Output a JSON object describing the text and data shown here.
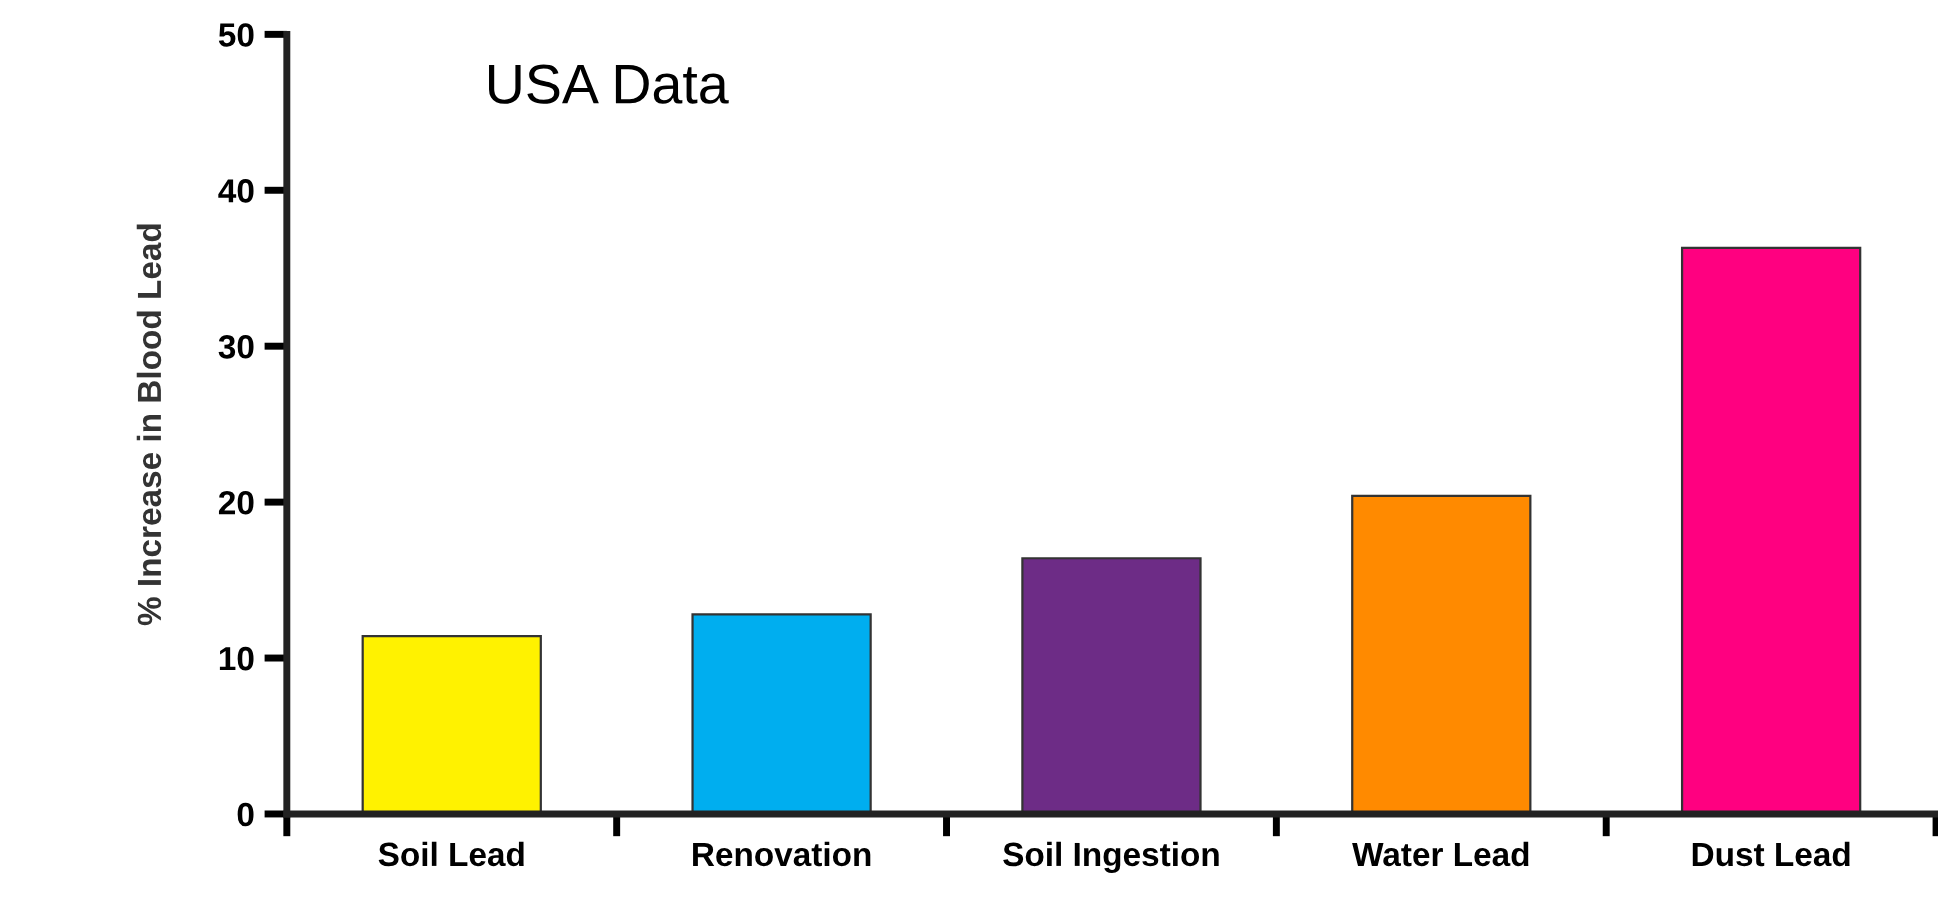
{
  "chart_data": {
    "type": "bar",
    "title": "USA Data",
    "ylabel": "% Increase in Blood Lead",
    "categories": [
      "Soil Lead",
      "Renovation",
      "Soil Ingestion",
      "Water Lead",
      "Dust Lead"
    ],
    "values": [
      11.4,
      12.8,
      16.4,
      20.4,
      36.3
    ],
    "colors": [
      "#fff200",
      "#00aeef",
      "#6d2c86",
      "#ff8a00",
      "#ff0080"
    ],
    "ylim": [
      0,
      50
    ],
    "yticks": [
      0,
      10,
      20,
      30,
      40,
      50
    ],
    "grid": false,
    "legend": false
  }
}
